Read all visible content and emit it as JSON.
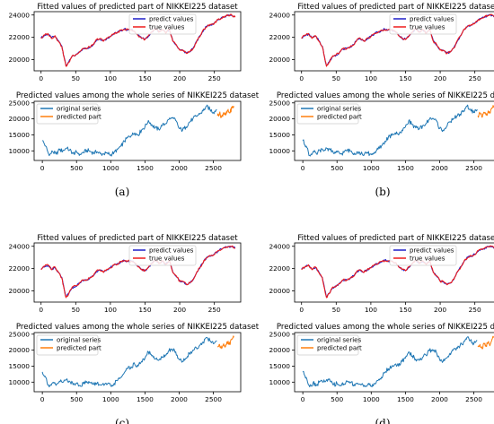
{
  "colors": {
    "predict": "#1f1fc8",
    "true": "#ee1c1c",
    "original": "#1f77b4",
    "predicted": "#ff7f0e",
    "axis": "#000000"
  },
  "panels": [
    {
      "id": "a",
      "caption": "(a)"
    },
    {
      "id": "b",
      "caption": "(b)"
    },
    {
      "id": "c",
      "caption": "(c)"
    },
    {
      "id": "d",
      "caption": "(d)"
    }
  ],
  "chart_data": [
    {
      "type": "line",
      "title": "Fitted values of predicted part of NIKKEI225 dataset",
      "xlim": [
        -10,
        288
      ],
      "ylim": [
        19000,
        24300
      ],
      "x_ticks": [
        0,
        50,
        100,
        150,
        200,
        250
      ],
      "y_ticks": [
        20000,
        22000,
        24000
      ],
      "legend": "top-center",
      "series": [
        {
          "name": "predict values",
          "x": [
            0,
            5,
            10,
            15,
            20,
            25,
            30,
            33,
            36,
            40,
            45,
            50,
            55,
            60,
            65,
            70,
            75,
            80,
            85,
            90,
            95,
            100,
            105,
            110,
            115,
            120,
            125,
            130,
            135,
            140,
            145,
            150,
            155,
            160,
            165,
            170,
            175,
            180,
            185,
            190,
            195,
            200,
            205,
            210,
            215,
            220,
            225,
            230,
            235,
            240,
            245,
            250,
            255,
            260,
            265,
            270,
            275,
            280
          ],
          "values": [
            21950,
            22150,
            22300,
            21950,
            22100,
            21700,
            21200,
            20300,
            19450,
            19800,
            20300,
            20400,
            20700,
            20950,
            21000,
            21100,
            21350,
            21750,
            21850,
            21700,
            21900,
            22100,
            22300,
            22450,
            22600,
            22750,
            22650,
            22700,
            22500,
            22200,
            21900,
            21850,
            22100,
            22500,
            22750,
            22500,
            22650,
            22400,
            22700,
            21700,
            21300,
            20900,
            20800,
            20600,
            20700,
            21100,
            21700,
            22200,
            22700,
            23050,
            23100,
            23300,
            23550,
            23750,
            23850,
            24000,
            23950,
            23850
          ]
        },
        {
          "name": "true values",
          "x": [
            0,
            5,
            10,
            15,
            20,
            25,
            30,
            33,
            36,
            40,
            45,
            50,
            55,
            60,
            65,
            70,
            75,
            80,
            85,
            90,
            95,
            100,
            105,
            110,
            115,
            120,
            125,
            130,
            135,
            140,
            145,
            150,
            155,
            160,
            165,
            170,
            175,
            180,
            185,
            190,
            195,
            200,
            205,
            210,
            215,
            220,
            225,
            230,
            235,
            240,
            245,
            250,
            255,
            260,
            265,
            270,
            275,
            280
          ],
          "values": [
            21900,
            22200,
            22350,
            21900,
            22150,
            21650,
            21150,
            20250,
            19400,
            19750,
            20350,
            20450,
            20650,
            21000,
            20950,
            21150,
            21300,
            21800,
            21900,
            21650,
            21950,
            22050,
            22350,
            22400,
            22650,
            22700,
            22700,
            22650,
            22550,
            22150,
            21950,
            21800,
            22150,
            22450,
            22800,
            22450,
            22700,
            22350,
            22750,
            21650,
            21350,
            20850,
            20850,
            20550,
            20750,
            21050,
            21750,
            22150,
            22750,
            23000,
            23150,
            23250,
            23600,
            23700,
            23900,
            23950,
            24000,
            23800
          ]
        }
      ]
    },
    {
      "type": "line",
      "title": "Predicted values among the whole series of NIKKEI225 dataset",
      "xlim": [
        -120,
        2900
      ],
      "ylim": [
        7000,
        25500
      ],
      "x_ticks": [
        0,
        500,
        1000,
        1500,
        2000,
        2500
      ],
      "y_ticks": [
        10000,
        15000,
        20000,
        25000
      ],
      "legend": "top-left",
      "series": [
        {
          "name": "original series",
          "x": [
            0,
            50,
            100,
            150,
            200,
            250,
            300,
            350,
            400,
            450,
            500,
            550,
            600,
            650,
            700,
            750,
            800,
            850,
            900,
            950,
            1000,
            1050,
            1100,
            1150,
            1200,
            1250,
            1300,
            1350,
            1400,
            1450,
            1500,
            1550,
            1600,
            1650,
            1700,
            1750,
            1800,
            1850,
            1900,
            1950,
            2000,
            2050,
            2100,
            2150,
            2200,
            2250,
            2300,
            2350,
            2400,
            2450,
            2500,
            2550
          ],
          "values": [
            13200,
            11500,
            8500,
            9800,
            9000,
            10300,
            10000,
            10800,
            10300,
            9200,
            9600,
            9000,
            9500,
            10200,
            9900,
            9300,
            9700,
            9100,
            9000,
            9300,
            8800,
            9600,
            10500,
            11500,
            13000,
            14200,
            14800,
            15600,
            15000,
            16500,
            17500,
            19500,
            18200,
            17200,
            16800,
            17800,
            18500,
            19800,
            20200,
            19500,
            17000,
            16500,
            17500,
            19000,
            20000,
            20800,
            21500,
            22500,
            24000,
            23000,
            22000,
            23000
          ]
        },
        {
          "name": "predicted part",
          "x": [
            2560,
            2590,
            2620,
            2650,
            2680,
            2710,
            2740,
            2770,
            2800
          ],
          "values": [
            21000,
            21800,
            20500,
            22000,
            21200,
            22500,
            21800,
            23500,
            24000
          ]
        }
      ]
    }
  ]
}
